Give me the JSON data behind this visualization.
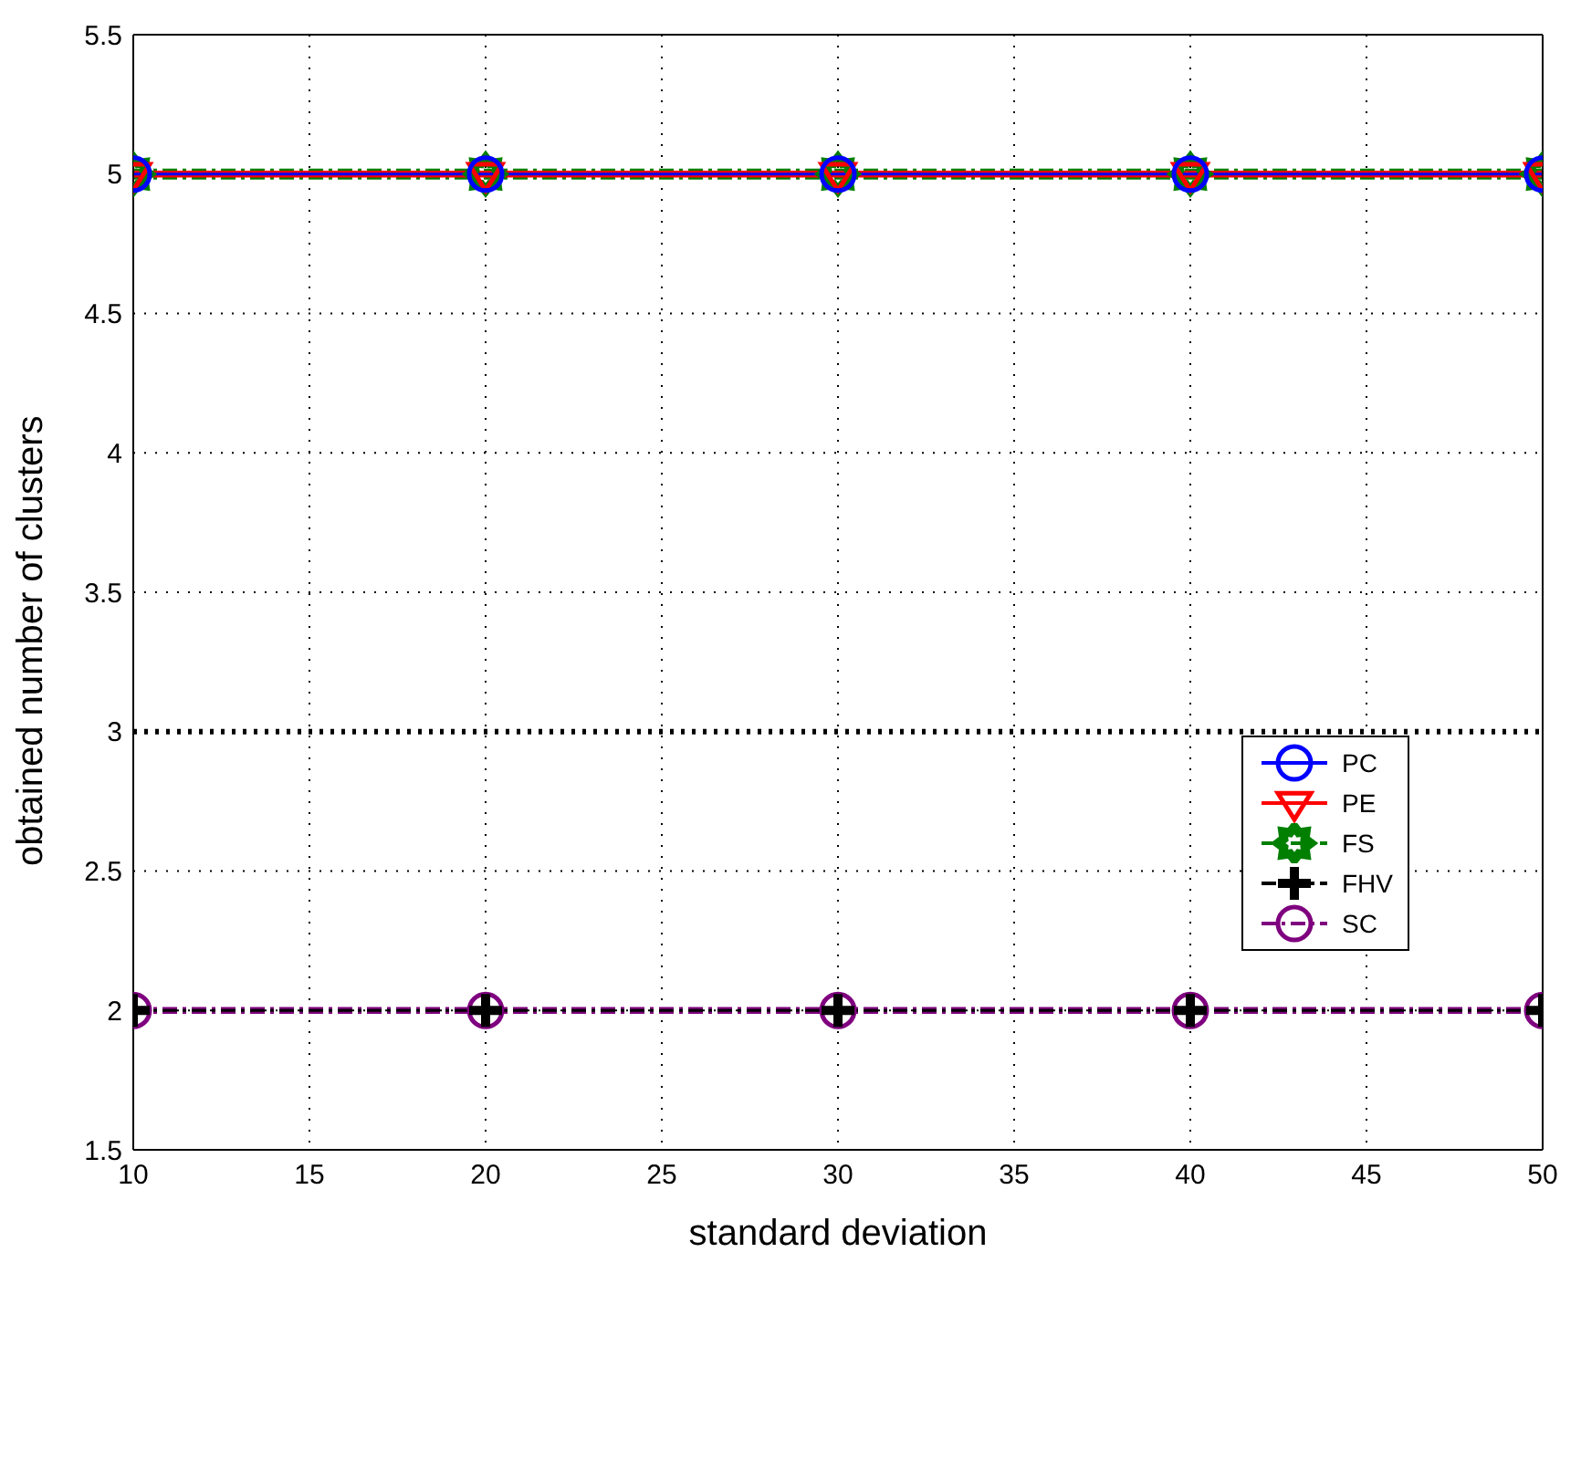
{
  "chart_data": {
    "type": "line",
    "xlabel": "standard deviation",
    "ylabel": "obtained number of clusters",
    "x": [
      10,
      20,
      30,
      40,
      50
    ],
    "series": [
      {
        "name": "PC",
        "color": "#0000ff",
        "values": [
          5,
          5,
          5,
          5,
          5
        ],
        "marker": "circle",
        "line_style": "solid"
      },
      {
        "name": "PE",
        "color": "#ff0000",
        "values": [
          5,
          5,
          5,
          5,
          5
        ],
        "marker": "triangle",
        "line_style": "solid"
      },
      {
        "name": "FS",
        "color": "#007f00",
        "values": [
          5,
          5,
          5,
          5,
          5
        ],
        "marker": "star",
        "line_style": "dashed"
      },
      {
        "name": "FHV",
        "color": "#000000",
        "values": [
          2,
          2,
          2,
          2,
          2
        ],
        "marker": "cross",
        "line_style": "dashed"
      },
      {
        "name": "SC",
        "color": "#7f007f",
        "values": [
          2,
          2,
          2,
          2,
          2
        ],
        "marker": "circle",
        "line_style": "dashed"
      }
    ],
    "xlim": [
      10,
      50
    ],
    "xticks": [
      10,
      15,
      20,
      25,
      30,
      35,
      40,
      45,
      50
    ],
    "ylim": [
      1.5,
      5.5
    ],
    "yticks": [
      1.5,
      2,
      2.5,
      3,
      3.5,
      4,
      4.5,
      5,
      5.5
    ],
    "ref_lines": [
      {
        "axis": "y",
        "value": 3,
        "color": "#000000",
        "line_style": "dotted"
      }
    ],
    "grid": true,
    "legend": "right"
  }
}
